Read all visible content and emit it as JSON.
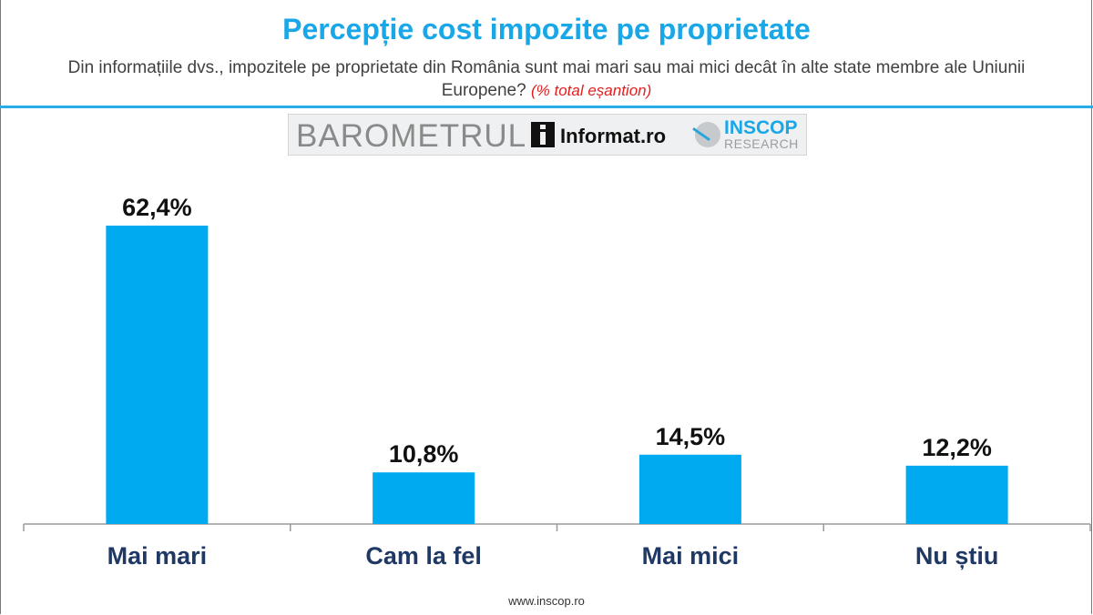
{
  "header": {
    "title": "Percepție cost impozite pe proprietate",
    "subtitle": "Din informațiile dvs., impozitele pe proprietate din România sunt mai mari sau mai mici decât în alte state membre ale Uniunii Europene?",
    "subtitle_note": "(% total eșantion)"
  },
  "banner": {
    "barometru": "BAROMETRUL",
    "informat": "Informat.ro",
    "inscop": "INSCOP",
    "research": "RESEARCH"
  },
  "chart_data": {
    "type": "bar",
    "categories": [
      "Mai mari",
      "Cam la fel",
      "Mai mici",
      "Nu știu"
    ],
    "values": [
      62.4,
      10.8,
      14.5,
      12.2
    ],
    "value_labels": [
      "62,4%",
      "10,8%",
      "14,5%",
      "12,2%"
    ],
    "ylim": [
      0,
      70
    ],
    "grid": false,
    "bar_color": "#00aaf0",
    "category_color": "#1f3864"
  },
  "footer": {
    "url": "www.inscop.ro"
  },
  "colors": {
    "accent": "#1aa7e8",
    "note": "#e02020"
  }
}
